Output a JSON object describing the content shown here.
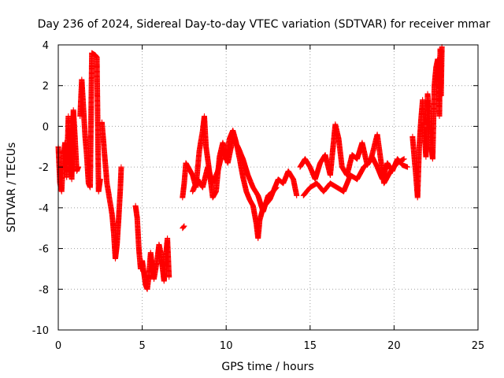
{
  "chart_data": {
    "type": "scatter",
    "title": "Day 236 of 2024, Sidereal Day-to-day VTEC variation (SDTVAR) for receiver mmar",
    "xlabel": "GPS time / hours",
    "ylabel": "SDTVAR / TECUs",
    "xlim": [
      0,
      25
    ],
    "ylim": [
      -10,
      4
    ],
    "xticks": [
      0,
      5,
      10,
      15,
      20,
      25
    ],
    "yticks": [
      -10,
      -8,
      -6,
      -4,
      -2,
      0,
      2,
      4
    ],
    "grid": true,
    "marker": "+",
    "series": [
      {
        "name": "SDTVAR",
        "color": "#ff0000",
        "segments": [
          [
            [
              0.0,
              -1.0
            ],
            [
              0.1,
              -2.8
            ],
            [
              0.2,
              -3.2
            ],
            [
              0.3,
              -1.5
            ],
            [
              0.4,
              -0.8
            ],
            [
              0.5,
              -2.5
            ],
            [
              0.6,
              0.5
            ],
            [
              0.7,
              -1.2
            ],
            [
              0.8,
              -2.6
            ],
            [
              0.9,
              0.8
            ],
            [
              1.0,
              -0.6
            ],
            [
              1.1,
              -2.2
            ],
            [
              1.2,
              -2.0
            ]
          ],
          [
            [
              1.3,
              0.5
            ],
            [
              1.4,
              2.3
            ],
            [
              1.5,
              0.9
            ],
            [
              1.6,
              -0.5
            ],
            [
              1.7,
              -1.5
            ],
            [
              1.8,
              -2.8
            ],
            [
              1.9,
              -3.0
            ],
            [
              2.0,
              3.6
            ],
            [
              2.1,
              3.55
            ],
            [
              2.2,
              3.5
            ],
            [
              2.3,
              3.4
            ],
            [
              2.4,
              -3.2
            ],
            [
              2.5,
              -2.6
            ]
          ],
          [
            [
              2.6,
              0.2
            ],
            [
              2.7,
              -0.8
            ],
            [
              2.8,
              -1.8
            ],
            [
              2.9,
              -2.8
            ],
            [
              3.0,
              -3.3
            ],
            [
              3.1,
              -3.8
            ],
            [
              3.2,
              -4.3
            ],
            [
              3.3,
              -5.2
            ],
            [
              3.4,
              -6.5
            ],
            [
              3.5,
              -5.8
            ],
            [
              3.6,
              -4.5
            ],
            [
              3.7,
              -3.0
            ],
            [
              3.75,
              -2.0
            ]
          ],
          [
            [
              4.6,
              -3.9
            ],
            [
              4.7,
              -4.5
            ],
            [
              4.8,
              -6.0
            ],
            [
              4.9,
              -7.0
            ],
            [
              5.0,
              -6.6
            ],
            [
              5.1,
              -7.2
            ],
            [
              5.2,
              -7.8
            ],
            [
              5.3,
              -8.0
            ],
            [
              5.4,
              -7.3
            ],
            [
              5.5,
              -6.2
            ],
            [
              5.6,
              -6.9
            ],
            [
              5.7,
              -7.5
            ],
            [
              5.8,
              -7.0
            ],
            [
              5.9,
              -6.5
            ],
            [
              6.0,
              -5.8
            ],
            [
              6.1,
              -6.2
            ],
            [
              6.2,
              -6.9
            ],
            [
              6.3,
              -7.6
            ],
            [
              6.4,
              -6.4
            ],
            [
              6.5,
              -5.5
            ],
            [
              6.6,
              -7.4
            ]
          ],
          [
            [
              7.4,
              -5.0
            ],
            [
              7.5,
              -4.9
            ]
          ],
          [
            [
              7.4,
              -3.5
            ],
            [
              7.5,
              -2.8
            ],
            [
              7.6,
              -1.8
            ],
            [
              7.8,
              -2.1
            ],
            [
              8.0,
              -2.4
            ],
            [
              8.2,
              -3.0
            ],
            [
              8.4,
              -1.2
            ],
            [
              8.6,
              -0.2
            ],
            [
              8.7,
              0.5
            ],
            [
              8.8,
              -1.0
            ],
            [
              9.0,
              -2.2
            ],
            [
              9.2,
              -3.5
            ],
            [
              9.4,
              -3.2
            ],
            [
              9.6,
              -1.5
            ],
            [
              9.8,
              -0.8
            ],
            [
              10.0,
              -1.6
            ],
            [
              10.2,
              -0.6
            ],
            [
              10.4,
              -0.2
            ],
            [
              10.6,
              -0.8
            ],
            [
              10.8,
              -1.6
            ],
            [
              11.0,
              -2.5
            ],
            [
              11.2,
              -3.2
            ],
            [
              11.4,
              -3.6
            ],
            [
              11.6,
              -3.9
            ],
            [
              11.8,
              -4.8
            ],
            [
              11.9,
              -5.5
            ],
            [
              12.0,
              -4.6
            ],
            [
              12.2,
              -4.0
            ],
            [
              12.4,
              -3.8
            ],
            [
              12.6,
              -3.6
            ],
            [
              12.8,
              -3.2
            ],
            [
              13.0,
              -3.0
            ]
          ],
          [
            [
              8.0,
              -3.2
            ],
            [
              8.3,
              -2.6
            ],
            [
              8.6,
              -3.0
            ],
            [
              8.9,
              -2.0
            ],
            [
              9.2,
              -2.8
            ],
            [
              9.5,
              -2.2
            ],
            [
              9.8,
              -1.2
            ],
            [
              10.1,
              -1.8
            ],
            [
              10.4,
              -0.6
            ],
            [
              10.7,
              -1.0
            ],
            [
              11.0,
              -1.6
            ],
            [
              11.3,
              -2.4
            ],
            [
              11.6,
              -3.0
            ],
            [
              11.9,
              -3.4
            ],
            [
              12.2,
              -4.2
            ],
            [
              12.5,
              -3.4
            ],
            [
              12.8,
              -3.2
            ],
            [
              13.1,
              -2.6
            ],
            [
              13.4,
              -2.8
            ],
            [
              13.7,
              -2.2
            ],
            [
              14.0,
              -2.6
            ],
            [
              14.2,
              -3.4
            ]
          ],
          [
            [
              14.4,
              -2.0
            ],
            [
              14.7,
              -1.6
            ],
            [
              15.0,
              -2.0
            ],
            [
              15.3,
              -2.6
            ],
            [
              15.6,
              -1.8
            ],
            [
              15.9,
              -1.4
            ],
            [
              16.2,
              -2.4
            ],
            [
              16.5,
              0.1
            ],
            [
              16.7,
              -0.6
            ],
            [
              16.9,
              -2.0
            ],
            [
              17.2,
              -2.4
            ],
            [
              17.5,
              -1.4
            ],
            [
              17.8,
              -1.6
            ],
            [
              18.1,
              -0.8
            ],
            [
              18.4,
              -1.9
            ],
            [
              18.7,
              -1.5
            ],
            [
              19.0,
              -2.0
            ],
            [
              19.3,
              -2.6
            ],
            [
              19.6,
              -1.8
            ],
            [
              19.9,
              -2.2
            ],
            [
              20.2,
              -1.6
            ],
            [
              20.5,
              -1.9
            ],
            [
              20.8,
              -2.0
            ]
          ],
          [
            [
              14.6,
              -3.4
            ],
            [
              15.0,
              -3.0
            ],
            [
              15.4,
              -2.8
            ],
            [
              15.8,
              -3.2
            ],
            [
              16.2,
              -2.8
            ],
            [
              16.6,
              -3.0
            ],
            [
              17.0,
              -3.2
            ],
            [
              17.4,
              -2.4
            ],
            [
              17.8,
              -2.6
            ],
            [
              18.2,
              -2.0
            ],
            [
              18.6,
              -1.7
            ],
            [
              19.0,
              -0.4
            ],
            [
              19.4,
              -2.8
            ],
            [
              19.8,
              -2.2
            ],
            [
              20.2,
              -1.8
            ],
            [
              20.6,
              -1.6
            ]
          ],
          [
            [
              21.1,
              -0.5
            ],
            [
              21.2,
              -1.5
            ],
            [
              21.3,
              -2.4
            ],
            [
              21.4,
              -3.5
            ],
            [
              21.5,
              -1.0
            ],
            [
              21.6,
              0.3
            ],
            [
              21.7,
              1.3
            ],
            [
              21.8,
              -0.2
            ],
            [
              21.9,
              -1.5
            ],
            [
              22.0,
              1.6
            ],
            [
              22.1,
              0.5
            ],
            [
              22.2,
              -1.0
            ],
            [
              22.3,
              -1.6
            ],
            [
              22.4,
              2.0
            ],
            [
              22.5,
              2.9
            ],
            [
              22.6,
              3.3
            ],
            [
              22.7,
              0.5
            ],
            [
              22.75,
              3.8
            ],
            [
              22.8,
              1.5
            ],
            [
              22.85,
              3.9
            ]
          ]
        ]
      }
    ]
  }
}
